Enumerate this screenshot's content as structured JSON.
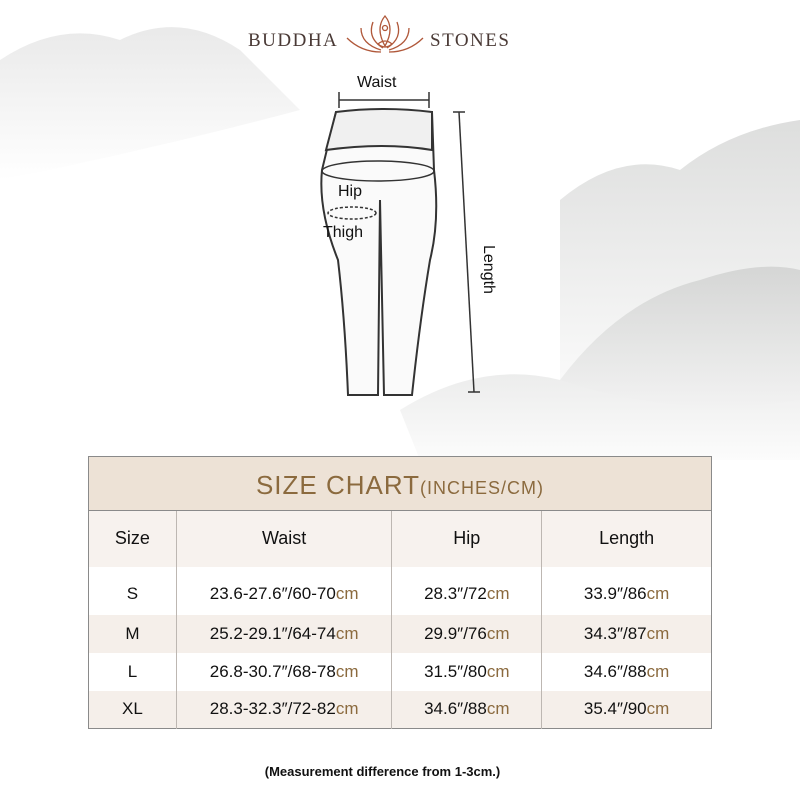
{
  "brand": {
    "left": "BUDDHA",
    "right": "STONES",
    "logo_icon": "lotus-meditation-icon",
    "color": "#b0583a"
  },
  "diagram": {
    "waist": "Waist",
    "hip": "Hip",
    "thigh": "Thigh",
    "length": "Length"
  },
  "table": {
    "title": "SIZE CHART",
    "title_unit": "(INCHES/CM)",
    "headers": [
      "Size",
      "Waist",
      "Hip",
      "Length"
    ],
    "rows": [
      {
        "size": "S",
        "waist": "23.6-27.6″/60-70",
        "hip": "28.3″/72",
        "length": "33.9″/86"
      },
      {
        "size": "M",
        "waist": "25.2-29.1″/64-74",
        "hip": "29.9″/76",
        "length": "34.3″/87"
      },
      {
        "size": "L",
        "waist": "26.8-30.7″/68-78",
        "hip": "31.5″/80",
        "length": "34.6″/88"
      },
      {
        "size": "XL",
        "waist": "28.3-32.3″/72-82",
        "hip": "34.6″/88",
        "length": "35.4″/90"
      }
    ],
    "unit": "cm",
    "accent": "#8b6a3e",
    "header_bg": "#ede2d6"
  },
  "note": "(Measurement difference from 1-3cm.)"
}
